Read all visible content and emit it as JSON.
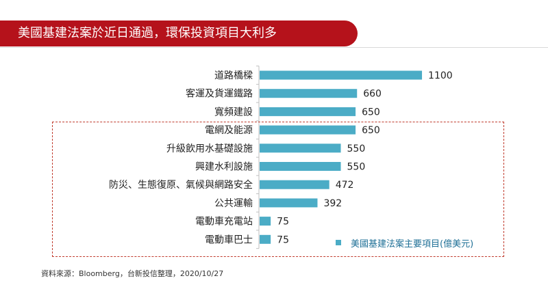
{
  "header": {
    "title": "美國基建法案於近日通過，環保投資項目大利多"
  },
  "chart_data": {
    "type": "bar",
    "orientation": "horizontal",
    "categories": [
      "道路橋樑",
      "客運及貨運鐵路",
      "寬頻建設",
      "電網及能源",
      "升級飲用水基礎設施",
      "興建水利設施",
      "防災、生態復原、氣候與網路安全",
      "公共運輸",
      "電動車充電站",
      "電動車巴士"
    ],
    "series": [
      {
        "name": "美國基建法案主要項目(億美元)",
        "values": [
          1100,
          660,
          650,
          650,
          550,
          550,
          472,
          392,
          75,
          75
        ]
      }
    ],
    "data_labels": [
      "1100",
      "660",
      "650",
      "650",
      "550",
      "550",
      "472",
      "392",
      "75",
      "75"
    ],
    "highlight_categories": [
      "電網及能源",
      "升級飲用水基礎設施",
      "興建水利設施",
      "防災、生態復原、氣候與網路安全",
      "公共運輸",
      "電動車充電站",
      "電動車巴士"
    ],
    "xlim": [
      0,
      1300
    ],
    "grid": false,
    "legend_position": "bottom-right"
  },
  "colors": {
    "bar": "#4bacc6",
    "title_banner": "#b5121b",
    "highlight_box": "#c0392b",
    "legend_text": "#1e6f96"
  },
  "footer": {
    "source": "資料來源：Bloomberg，台新投信整理，2020/10/27"
  }
}
